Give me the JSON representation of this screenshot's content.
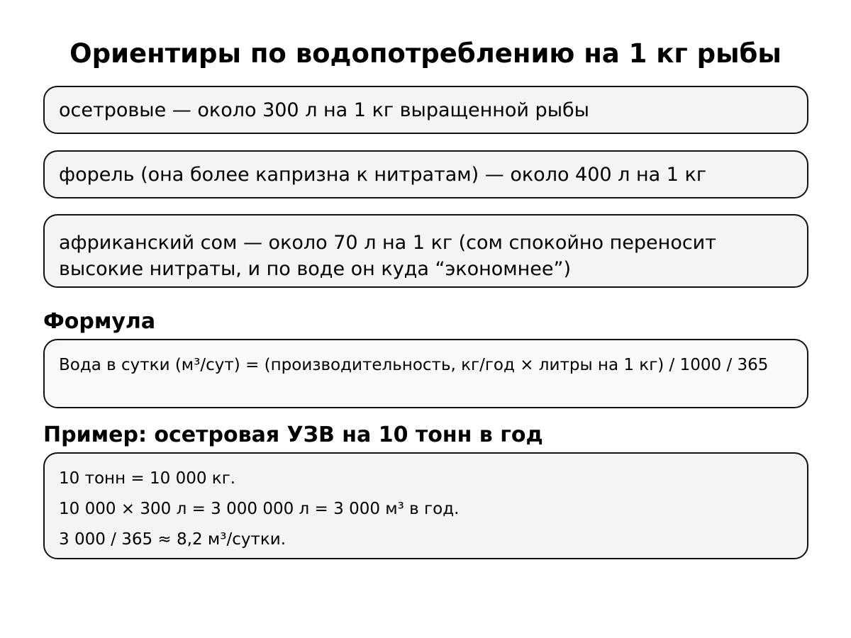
{
  "title": "Ориентиры по водопотреблению на 1 кг рыбы",
  "guidelines": [
    "осетровые — около 300 л на 1 кг выращенной рыбы",
    "форель (она более капризна к нитратам) — около 400 л на 1 кг",
    "африканский сом — около 70 л на 1 кг (сом спокойно переносит высокие нитраты, и по воде он куда “экономнее”)"
  ],
  "formula": {
    "heading": "Формула",
    "text": "Вода в сутки (м³/сут) = (производительность, кг/год × литры на 1 кг) / 1000 / 365"
  },
  "example": {
    "heading": "Пример: осетровая УЗВ на 10 тонн в год",
    "lines": [
      "10 тонн = 10 000 кг.",
      "10 000 × 300 л = 3 000 000 л = 3 000 м³ в год.",
      "3 000 / 365 ≈ 8,2 м³/сутки."
    ]
  }
}
